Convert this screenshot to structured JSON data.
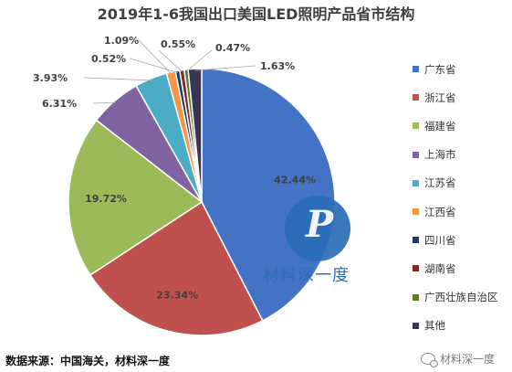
{
  "chart_data": {
    "type": "pie",
    "title": "2019年1-6我国出口美国LED照明产品省市结构",
    "categories": [
      "广东省",
      "浙江省",
      "福建省",
      "上海市",
      "江苏省",
      "江西省",
      "四川省",
      "湖南省",
      "广西壮族自治区",
      "其他"
    ],
    "values": [
      42.44,
      23.34,
      19.72,
      6.31,
      3.93,
      1.09,
      0.52,
      0.55,
      0.47,
      1.63
    ],
    "value_labels": [
      "42.44%",
      "23.34%",
      "19.72%",
      "6.31%",
      "3.93%",
      "1.09%",
      "0.52%",
      "0.55%",
      "0.47%",
      "1.63%"
    ],
    "colors": [
      "#4472c4",
      "#c0504d",
      "#9bbb59",
      "#8064a2",
      "#4bacc6",
      "#f79646",
      "#1f3864",
      "#7b2c2c",
      "#5e7a2e",
      "#3c3453"
    ],
    "legend_position": "right",
    "start_angle": "12 o'clock, clockwise"
  },
  "source_note": "数据来源：中国海关，材料深一度",
  "watermark": {
    "text": "材料深一度",
    "logo_glyph": "P",
    "wechat_icon": "wechat-icon",
    "wechat_label": "材料深一度"
  }
}
